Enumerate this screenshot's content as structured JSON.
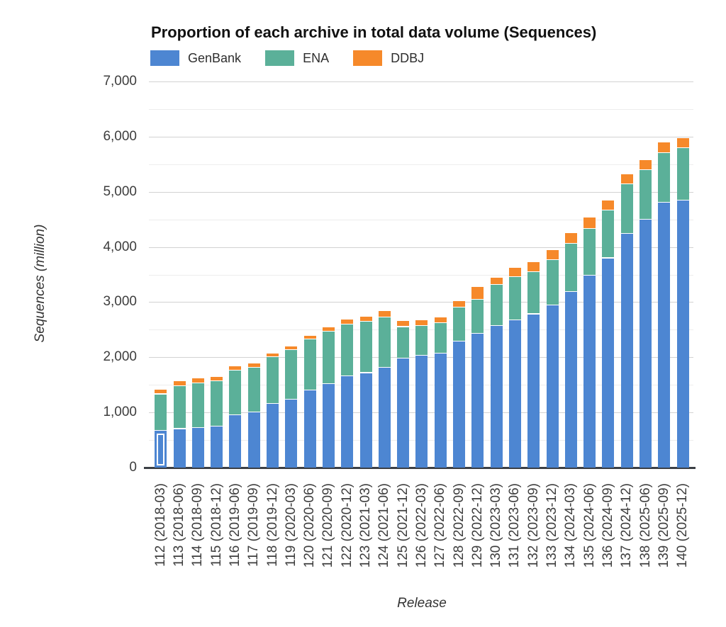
{
  "chart_data": {
    "type": "bar",
    "stacked": true,
    "title": "Proportion of each archive in total data volume (Sequences)",
    "xlabel": "Release",
    "ylabel": "Sequences (million)",
    "ylim": [
      0,
      7000
    ],
    "ytick_step": 1000,
    "ytick_labels": [
      "0",
      "1,000",
      "2,000",
      "3,000",
      "4,000",
      "5,000",
      "6,000",
      "7,000"
    ],
    "grid": true,
    "legend_position": "top-left",
    "categories": [
      "112 (2018-03)",
      "113 (2018-06)",
      "114 (2018-09)",
      "115 (2018-12)",
      "116 (2019-06)",
      "117 (2019-09)",
      "118 (2019-12)",
      "119 (2020-03)",
      "120 (2020-06)",
      "121 (2020-09)",
      "122 (2020-12)",
      "123 (2021-03)",
      "124 (2021-06)",
      "125 (2021-12)",
      "126 (2022-03)",
      "127 (2022-06)",
      "128 (2022-09)",
      "129 (2022-12)",
      "130 (2023-03)",
      "131 (2023-06)",
      "132 (2023-09)",
      "133 (2023-12)",
      "134 (2024-03)",
      "135 (2024-06)",
      "136 (2024-09)",
      "137 (2024-12)",
      "138 (2025-06)",
      "139 (2025-09)",
      "140 (2025-12)"
    ],
    "series": [
      {
        "name": "GenBank",
        "color": "#4d86d2",
        "values": [
          670,
          700,
          720,
          750,
          955,
          1000,
          1155,
          1230,
          1405,
          1515,
          1660,
          1715,
          1810,
          1980,
          2025,
          2065,
          2290,
          2425,
          2570,
          2675,
          2780,
          2945,
          3180,
          3475,
          3795,
          4235,
          4500,
          4805,
          4845
        ]
      },
      {
        "name": "ENA",
        "color": "#5bb099",
        "values": [
          660,
          775,
          810,
          820,
          800,
          810,
          850,
          900,
          925,
          955,
          930,
          930,
          910,
          570,
          545,
          560,
          610,
          620,
          740,
          775,
          770,
          815,
          880,
          855,
          865,
          900,
          900,
          895,
          945
        ]
      },
      {
        "name": "DDBJ",
        "color": "#f6892a",
        "values": [
          80,
          90,
          85,
          80,
          85,
          75,
          60,
          65,
          65,
          80,
          100,
          95,
          120,
          105,
          105,
          100,
          115,
          235,
          130,
          170,
          180,
          185,
          195,
          200,
          180,
          180,
          180,
          200,
          185
        ]
      }
    ],
    "highlight": {
      "category_index": 0,
      "series_index": 0
    }
  }
}
